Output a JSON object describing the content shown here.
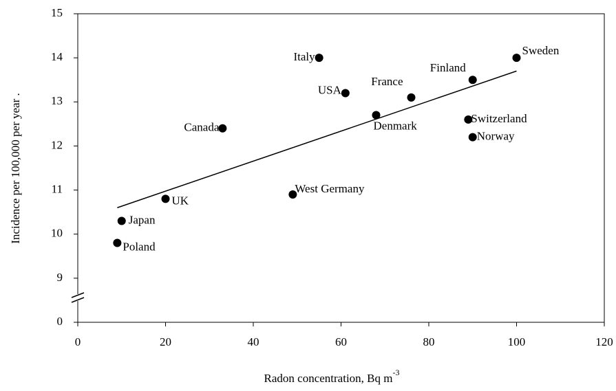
{
  "chart_data": {
    "type": "scatter",
    "x_label": "Radon concentration, Bq m",
    "x_label_superscript": "-3",
    "y_label": "Incidence per 100,000 per year .",
    "series": [
      {
        "name": null,
        "color": "#000000",
        "labels": [
          "Poland",
          "Japan",
          "UK",
          "Canada",
          "West Germany",
          "Italy",
          "USA",
          "Denmark",
          "France",
          "Switzerland",
          "Finland",
          "Norway",
          "Sweden"
        ],
        "x": [
          9,
          10,
          20,
          33,
          49,
          55,
          61,
          68,
          76,
          89,
          90,
          90,
          100
        ],
        "values": [
          9.8,
          10.3,
          10.8,
          12.4,
          10.9,
          14.0,
          13.2,
          12.7,
          13.1,
          12.6,
          13.5,
          12.2,
          14.0
        ]
      }
    ],
    "trendline": {
      "x": [
        9,
        100
      ],
      "y": [
        10.6,
        13.7
      ]
    },
    "xlim": [
      0,
      120
    ],
    "xticks": [
      0,
      20,
      40,
      60,
      80,
      100,
      120
    ],
    "ylim": [
      0,
      15
    ],
    "yticks": [
      0,
      9,
      10,
      11,
      12,
      13,
      14,
      15
    ],
    "y_axis_break": true,
    "grid": false
  }
}
